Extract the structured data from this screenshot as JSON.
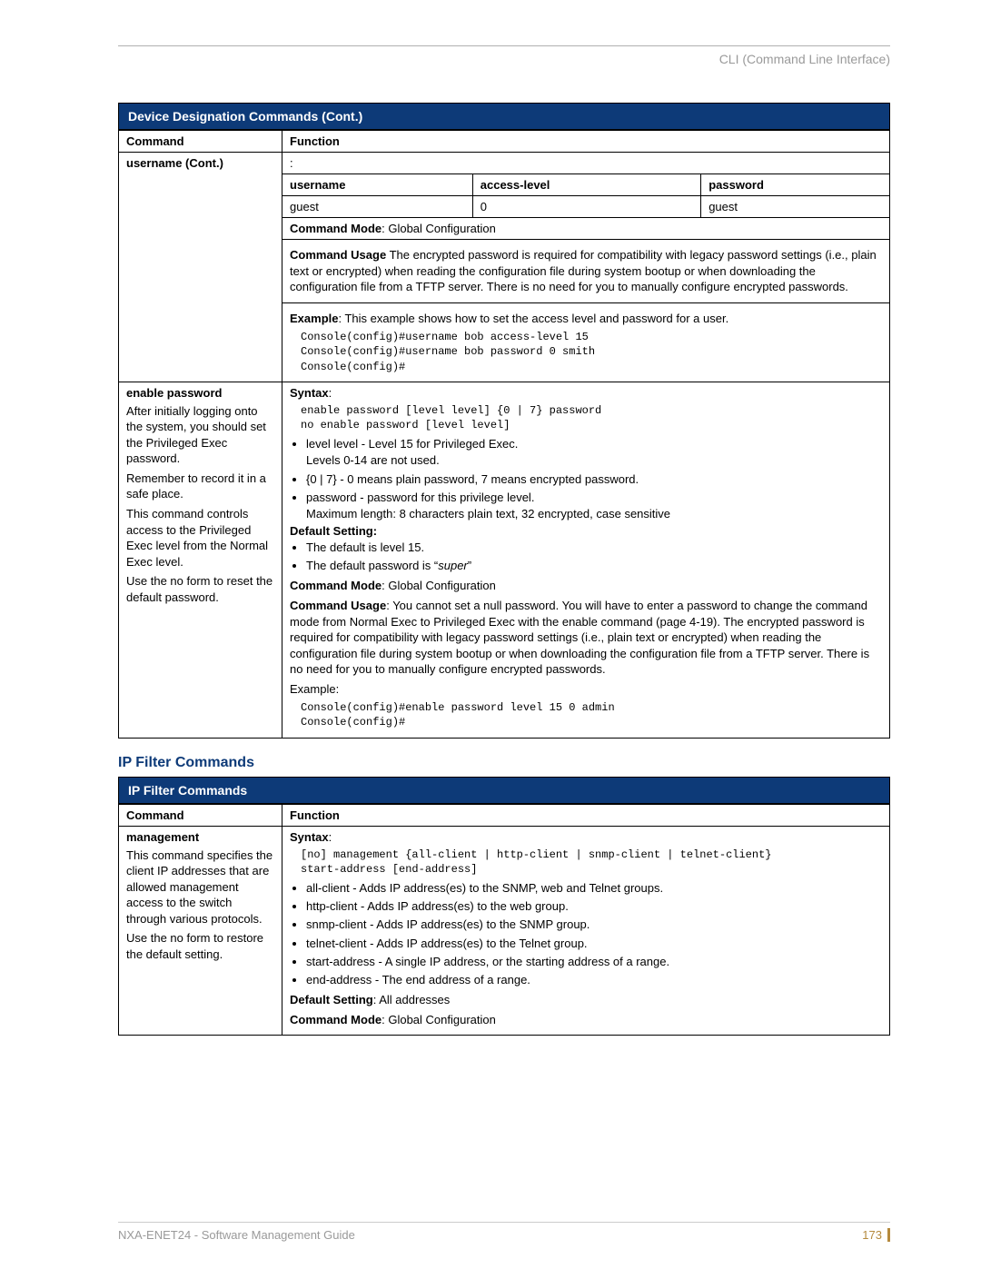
{
  "header_right": "CLI (Command Line Interface)",
  "t1": {
    "title": "Device Designation Commands (Cont.)",
    "col_command": "Command",
    "col_function": "Function",
    "row1": {
      "name": "username (Cont.)",
      "colon": ":",
      "th_username": "username",
      "th_access": "access-level",
      "th_password": "password",
      "td_username": "guest",
      "td_access": "0",
      "td_password": "guest",
      "cmd_mode_label": "Command Mode",
      "cmd_mode": ": Global Configuration",
      "usage_label": "Command Usage",
      "usage": " The encrypted password is required for compatibility with legacy password settings (i.e., plain text or encrypted) when reading the configuration file during system bootup or when downloading the configuration file from a TFTP server. There is no need for you to manually configure encrypted passwords.",
      "example_label": "Example",
      "example_text": ": This example shows how to set the access level and password for a user.",
      "example_code": "Console(config)#username bob access-level 15\nConsole(config)#username bob password 0 smith\nConsole(config)#"
    },
    "row2": {
      "name": "enable password",
      "desc_p1": "After initially logging onto the system, you should set the Privileged Exec password.",
      "desc_p2": "Remember to record it in a safe place.",
      "desc_p3": "This command controls access to the Privileged Exec level from the Normal Exec level.",
      "desc_p4": "Use the no form to reset the default password.",
      "syntax_label": "Syntax",
      "syntax_code": "enable password [level level] {0 | 7} password\nno enable password [level level]",
      "b1": "level level - Level 15 for Privileged Exec.",
      "b1_sub": "Levels 0-14 are not used.",
      "b2": "{0 | 7} - 0 means plain password, 7 means encrypted password.",
      "b3": "password - password for this privilege level.",
      "b3_sub": "Maximum length: 8 characters plain text, 32 encrypted, case sensitive",
      "default_label": "Default Setting:",
      "d1": "The default is level 15.",
      "d2_a": "The default password is “",
      "d2_i": "super",
      "d2_b": "”",
      "cmd_mode_label": "Command Mode",
      "cmd_mode": ": Global Configuration",
      "usage_label": "Command Usage",
      "usage": ": You cannot set a null password. You will have to enter a password to change the command mode from Normal Exec to Privileged Exec with the enable command (page 4-19). The encrypted password is required for compatibility with legacy password settings (i.e., plain text or encrypted) when reading the configuration file during system bootup or when downloading the configuration file from a TFTP server. There is no need for you to manually configure encrypted passwords.",
      "example_label": "Example:",
      "example_code": "Console(config)#enable password level 15 0 admin\nConsole(config)#"
    }
  },
  "sec2_title": "IP Filter Commands",
  "t2": {
    "title": "IP Filter Commands",
    "col_command": "Command",
    "col_function": "Function",
    "row1": {
      "name": "management",
      "desc_p1": "This command specifies the client IP addresses that are allowed management access to the switch through various protocols.",
      "desc_p2": "Use the no form to restore the default setting.",
      "syntax_label": "Syntax",
      "syntax_code": "[no] management {all-client | http-client | snmp-client | telnet-client}\nstart-address [end-address]",
      "b1": "all-client - Adds IP address(es) to the SNMP, web and Telnet groups.",
      "b2": "http-client - Adds IP address(es) to the web group.",
      "b3": "snmp-client - Adds IP address(es) to the SNMP group.",
      "b4": "telnet-client - Adds IP address(es) to the Telnet group.",
      "b5": "start-address - A single IP address, or the starting address of a range.",
      "b6": "end-address - The end address of a range.",
      "default_label": "Default Setting",
      "default_text": ": All addresses",
      "cmd_mode_label": "Command Mode",
      "cmd_mode": ": Global Configuration"
    }
  },
  "footer_left": "NXA-ENET24 - Software Management Guide",
  "footer_page": "173"
}
